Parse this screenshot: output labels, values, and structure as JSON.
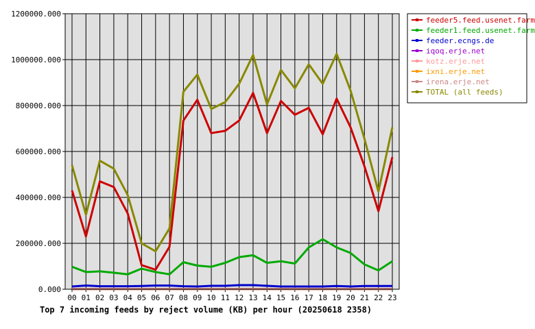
{
  "chart_data": {
    "type": "line",
    "title": "Top 7 incoming feeds by reject volume (KB) per hour (20250618 2358)",
    "categories": [
      "00",
      "01",
      "02",
      "03",
      "04",
      "05",
      "06",
      "07",
      "08",
      "09",
      "10",
      "11",
      "12",
      "13",
      "14",
      "15",
      "16",
      "17",
      "18",
      "19",
      "20",
      "21",
      "22",
      "23"
    ],
    "ylim": [
      0,
      1200000
    ],
    "yticks": [
      "0.000",
      "200000.000",
      "400000.000",
      "600000.000",
      "800000.000",
      "1000000.000",
      "1200000.000"
    ],
    "ytick_values": [
      0,
      200000,
      400000,
      600000,
      800000,
      1000000,
      1200000
    ],
    "grid": true,
    "legend_position": "right",
    "series": [
      {
        "name": "feeder5.feed.usenet.farm",
        "color": "#cc0000",
        "values": [
          430000,
          230000,
          470000,
          445000,
          330000,
          105000,
          85000,
          185000,
          735000,
          825000,
          680000,
          690000,
          735000,
          855000,
          680000,
          820000,
          760000,
          790000,
          675000,
          830000,
          705000,
          535000,
          340000,
          575000
        ]
      },
      {
        "name": "feeder1.feed.usenet.farm",
        "color": "#00aa00",
        "values": [
          98000,
          75000,
          78000,
          72000,
          65000,
          90000,
          75000,
          65000,
          118000,
          103000,
          98000,
          115000,
          140000,
          148000,
          115000,
          122000,
          112000,
          182000,
          218000,
          182000,
          158000,
          108000,
          82000,
          122000
        ]
      },
      {
        "name": "feeder.ecngs.de",
        "color": "#0000cc",
        "values": [
          12000,
          16000,
          13000,
          13000,
          13000,
          14000,
          16000,
          16000,
          13000,
          12000,
          15000,
          15000,
          18000,
          18000,
          15000,
          12000,
          12000,
          12000,
          12000,
          14000,
          12000,
          14000,
          14000,
          14000
        ]
      },
      {
        "name": "iqoq.erje.net",
        "color": "#9900cc",
        "values": [
          1500,
          1500,
          1500,
          1500,
          1500,
          1500,
          1500,
          1500,
          1500,
          1500,
          1500,
          1500,
          1500,
          1500,
          1500,
          1500,
          1500,
          1500,
          1500,
          1500,
          1500,
          1500,
          1500,
          1500
        ]
      },
      {
        "name": "kotz.erje.net",
        "color": "#ff9999",
        "values": [
          1000,
          1000,
          1000,
          1000,
          1000,
          1000,
          1000,
          1000,
          1000,
          1000,
          1000,
          1000,
          1000,
          1000,
          1000,
          1000,
          1000,
          1000,
          1000,
          1000,
          1000,
          1000,
          1000,
          1000
        ]
      },
      {
        "name": "ixni.erje.net",
        "color": "#ff9900",
        "values": [
          800,
          800,
          800,
          800,
          800,
          800,
          800,
          800,
          800,
          800,
          800,
          800,
          800,
          800,
          800,
          800,
          800,
          800,
          800,
          800,
          800,
          800,
          800,
          800
        ]
      },
      {
        "name": "irena.erje.net",
        "color": "#cc8888",
        "values": [
          600,
          600,
          600,
          600,
          600,
          600,
          600,
          600,
          600,
          600,
          600,
          600,
          600,
          600,
          600,
          600,
          600,
          600,
          600,
          600,
          600,
          600,
          600,
          600
        ]
      },
      {
        "name": "TOTAL (all feeds)",
        "color": "#888800",
        "values": [
          540000,
          325000,
          560000,
          525000,
          410000,
          200000,
          165000,
          265000,
          860000,
          935000,
          785000,
          815000,
          895000,
          1020000,
          805000,
          955000,
          875000,
          980000,
          895000,
          1025000,
          865000,
          655000,
          425000,
          705000
        ]
      }
    ]
  }
}
